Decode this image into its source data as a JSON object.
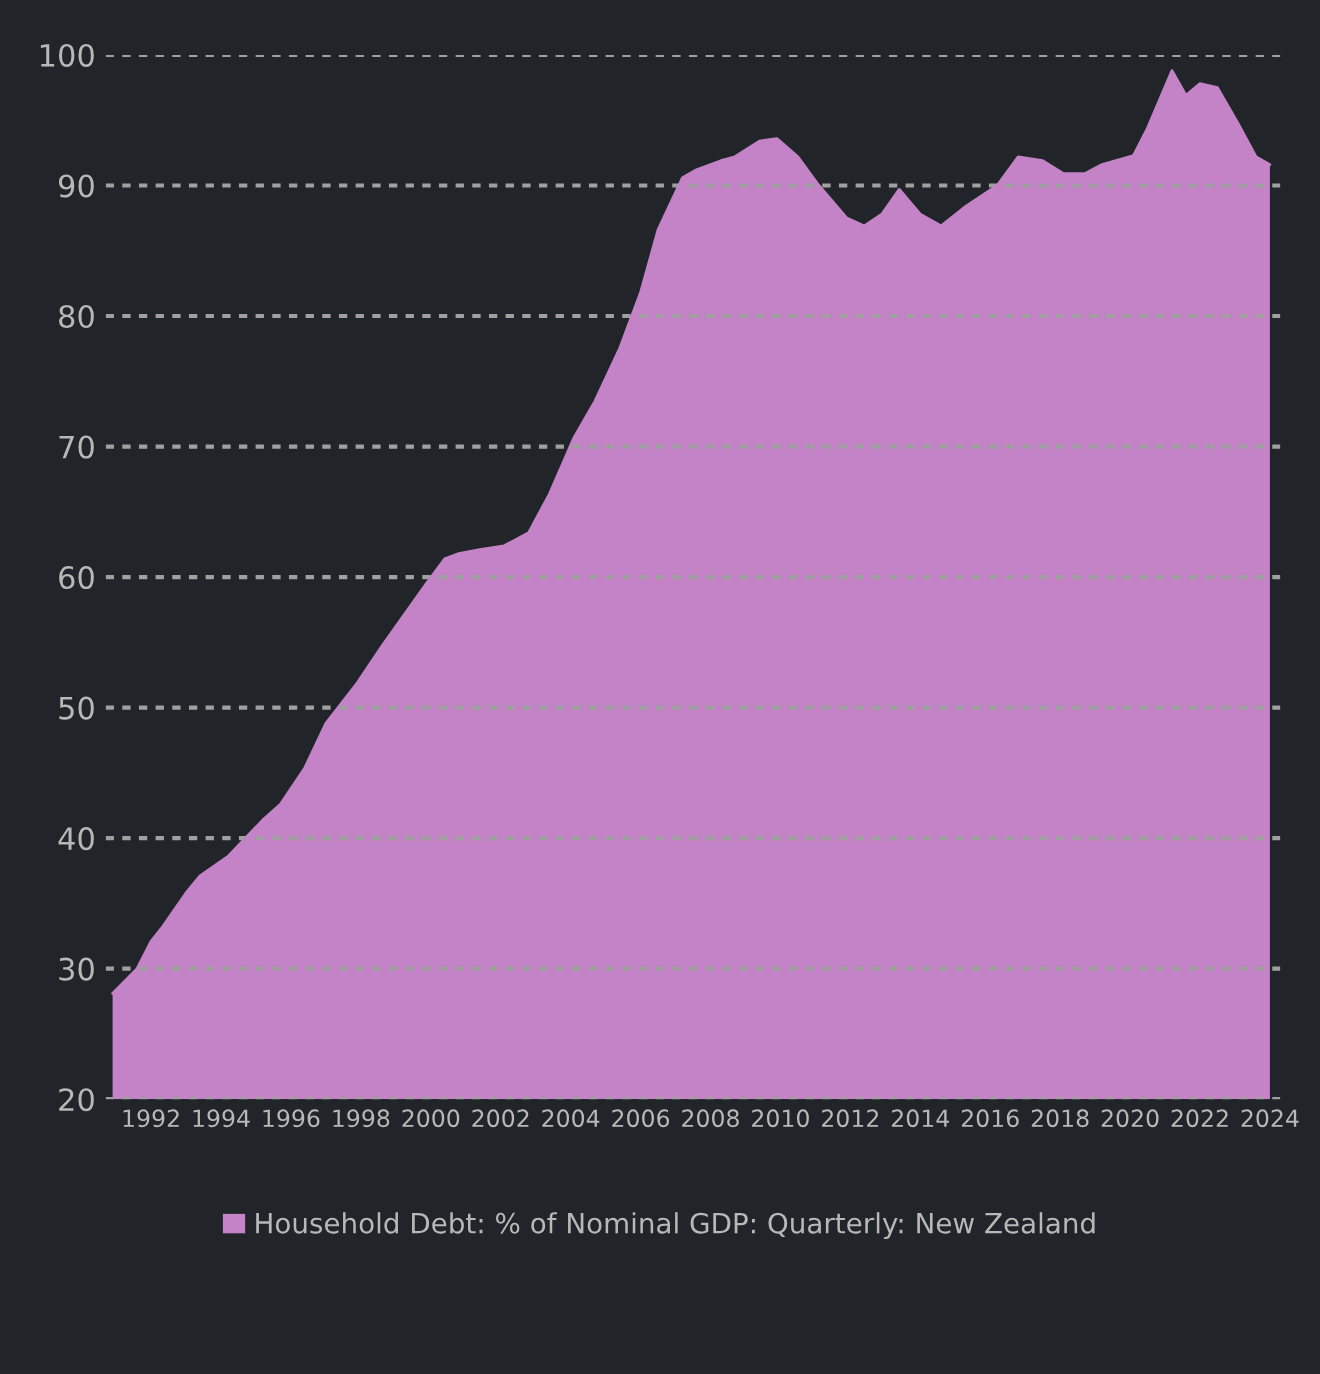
{
  "chart_data": {
    "type": "area",
    "series": [
      {
        "name": "Household Debt: % of Nominal GDP: Quarterly: New Zealand",
        "color": "#c383c6",
        "x": [
          1990.9,
          1991.6,
          1992.0,
          1992.3,
          1993.0,
          1993.4,
          1994.2,
          1995.2,
          1995.7,
          1996.4,
          1997.0,
          1997.9,
          1998.6,
          1999.0,
          1999.9,
          2000.4,
          2000.8,
          2001.4,
          2002.1,
          2002.8,
          2003.4,
          2004.1,
          2004.7,
          2005.4,
          2006.0,
          2006.5,
          2007.2,
          2007.6,
          2008.3,
          2008.7,
          2009.4,
          2009.9,
          2010.5,
          2011.1,
          2011.9,
          2012.4,
          2012.9,
          2013.4,
          2014.0,
          2014.6,
          2015.3,
          2016.2,
          2016.8,
          2017.5,
          2018.1,
          2018.7,
          2019.2,
          2020.1,
          2020.5,
          2021.2,
          2021.6,
          2022.0,
          2022.5,
          2023.1,
          2023.6,
          2024.0
        ],
        "values": [
          28.1,
          30.0,
          32.1,
          33.1,
          35.8,
          37.1,
          38.6,
          41.4,
          42.6,
          45.4,
          48.8,
          51.9,
          54.7,
          56.2,
          59.6,
          61.4,
          61.8,
          62.1,
          62.4,
          63.4,
          66.4,
          70.7,
          73.5,
          77.5,
          81.8,
          86.6,
          90.6,
          91.2,
          91.9,
          92.2,
          93.4,
          93.6,
          92.2,
          90.0,
          87.5,
          86.9,
          87.8,
          89.7,
          87.8,
          86.9,
          88.4,
          90.0,
          92.2,
          91.9,
          90.9,
          90.9,
          91.6,
          92.3,
          94.4,
          98.8,
          96.9,
          97.8,
          97.5,
          94.7,
          92.2,
          91.6
        ]
      }
    ],
    "xlim": [
      1990.7,
      2024.3
    ],
    "xticks": [
      1992,
      1994,
      1996,
      1998,
      2000,
      2002,
      2004,
      2006,
      2008,
      2010,
      2012,
      2014,
      2016,
      2018,
      2020,
      2022,
      2024
    ],
    "ylim": [
      20,
      100
    ],
    "yticks": [
      20,
      30,
      40,
      50,
      60,
      70,
      80,
      90,
      100
    ],
    "grid": "y",
    "legend": "bottom"
  }
}
